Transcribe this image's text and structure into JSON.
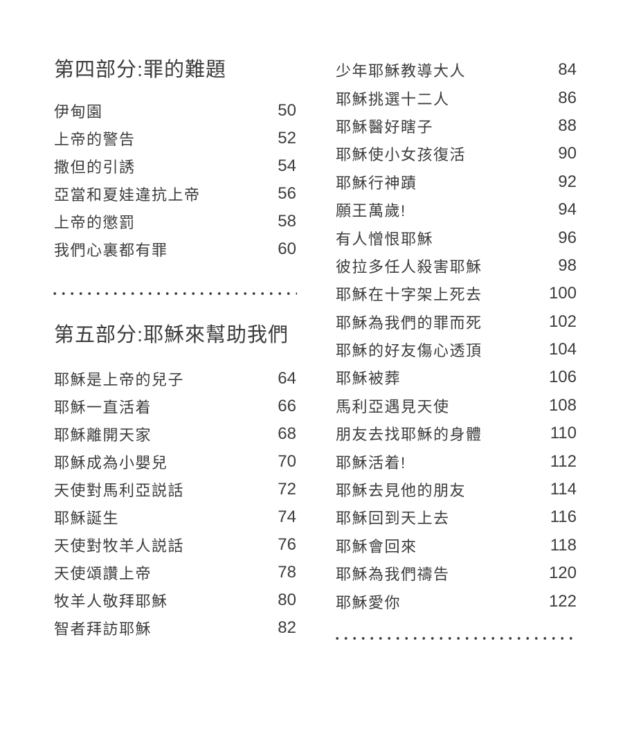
{
  "page": {
    "background": "#ffffff",
    "text_color": "#3c3c3c"
  },
  "left_column": {
    "section_4": {
      "heading": "第四部分:罪的難題",
      "entries": [
        {
          "title": "伊甸園",
          "page": "50"
        },
        {
          "title": "上帝的警告",
          "page": "52"
        },
        {
          "title": "撒但的引誘",
          "page": "54"
        },
        {
          "title": "亞當和夏娃違抗上帝",
          "page": "56"
        },
        {
          "title": "上帝的懲罰",
          "page": "58"
        },
        {
          "title": "我們心裏都有罪",
          "page": "60"
        }
      ]
    },
    "section_5": {
      "heading": "第五部分:耶穌來幫助我們",
      "entries": [
        {
          "title": "耶穌是上帝的兒子",
          "page": "64"
        },
        {
          "title": "耶穌一直活着",
          "page": "66"
        },
        {
          "title": "耶穌離開天家",
          "page": "68"
        },
        {
          "title": "耶穌成為小嬰兒",
          "page": "70"
        },
        {
          "title": "天使對馬利亞説話",
          "page": "72"
        },
        {
          "title": "耶穌誕生",
          "page": "74"
        },
        {
          "title": "天使對牧羊人説話",
          "page": "76"
        },
        {
          "title": "天使頌讚上帝",
          "page": "78"
        },
        {
          "title": "牧羊人敬拜耶穌",
          "page": "80"
        },
        {
          "title": "智者拜訪耶穌",
          "page": "82"
        }
      ]
    }
  },
  "right_column": {
    "entries": [
      {
        "title": "少年耶穌教導大人",
        "page": "84"
      },
      {
        "title": "耶穌挑選十二人",
        "page": "86"
      },
      {
        "title": "耶穌醫好瞎子",
        "page": "88"
      },
      {
        "title": "耶穌使小女孩復活",
        "page": "90"
      },
      {
        "title": "耶穌行神蹟",
        "page": "92"
      },
      {
        "title": "願王萬歲!",
        "page": "94"
      },
      {
        "title": "有人憎恨耶穌",
        "page": "96"
      },
      {
        "title": "彼拉多任人殺害耶穌",
        "page": "98"
      },
      {
        "title": "耶穌在十字架上死去",
        "page": "100"
      },
      {
        "title": "耶穌為我們的罪而死",
        "page": "102"
      },
      {
        "title": "耶穌的好友傷心透頂",
        "page": "104"
      },
      {
        "title": "耶穌被葬",
        "page": "106"
      },
      {
        "title": "馬利亞遇見天使",
        "page": "108"
      },
      {
        "title": "朋友去找耶穌的身體",
        "page": "110"
      },
      {
        "title": "耶穌活着!",
        "page": "112"
      },
      {
        "title": "耶穌去見他的朋友",
        "page": "114"
      },
      {
        "title": "耶穌回到天上去",
        "page": "116"
      },
      {
        "title": "耶穌會回來",
        "page": "118"
      },
      {
        "title": "耶穌為我們禱告",
        "page": "120"
      },
      {
        "title": "耶穌愛你",
        "page": "122"
      }
    ]
  }
}
